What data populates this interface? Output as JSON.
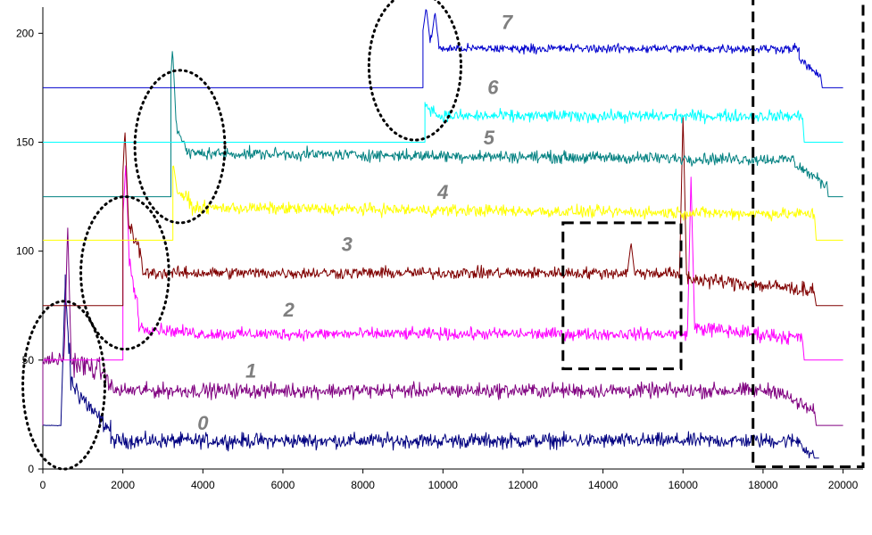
{
  "chart_data": {
    "type": "line",
    "title": "",
    "xlabel": "",
    "ylabel": "",
    "xlim": [
      0,
      20500
    ],
    "ylim": [
      0,
      212
    ],
    "x_ticks": [
      0,
      2000,
      4000,
      6000,
      8000,
      10000,
      12000,
      14000,
      16000,
      18000,
      20000
    ],
    "y_ticks": [
      0,
      50,
      100,
      150,
      200
    ],
    "grid": false,
    "legend": "none",
    "series": [
      {
        "name": "0",
        "color": "#000080",
        "baseline": 20,
        "x_start": 0,
        "x_end": 19400,
        "y_end": 5,
        "segments": [
          [
            0,
            450,
            20,
            20,
            0.3
          ],
          [
            450,
            560,
            20,
            85,
            3
          ],
          [
            560,
            700,
            85,
            40,
            10
          ],
          [
            700,
            1300,
            40,
            25,
            8
          ],
          [
            1300,
            1700,
            25,
            18,
            6
          ],
          [
            1700,
            18900,
            13,
            13,
            5
          ],
          [
            18900,
            19250,
            13,
            5,
            5
          ]
        ],
        "spikes": []
      },
      {
        "name": "1",
        "color": "#800080",
        "baseline": 20,
        "x_start": 0,
        "x_end": 20000,
        "y_end": 20,
        "segments": [
          [
            0,
            550,
            50,
            50,
            5
          ],
          [
            550,
            1500,
            50,
            45,
            8
          ],
          [
            1500,
            1800,
            45,
            35,
            5
          ],
          [
            1800,
            18500,
            36,
            36,
            5
          ],
          [
            18500,
            19300,
            34,
            26,
            5
          ]
        ],
        "spikes": [
          [
            620,
            112
          ]
        ]
      },
      {
        "name": "2",
        "color": "#ff00ff",
        "baseline": 50,
        "x_start": 0,
        "x_end": 20000,
        "y_end": 50,
        "segments": [
          [
            2000,
            2400,
            110,
            72,
            6
          ],
          [
            2400,
            4000,
            65,
            62,
            4
          ],
          [
            4000,
            16200,
            62,
            62,
            4
          ],
          [
            16200,
            19000,
            65,
            60,
            5
          ]
        ],
        "spikes": [
          [
            2070,
            140
          ],
          [
            16200,
            134
          ]
        ]
      },
      {
        "name": "3",
        "color": "#800000",
        "baseline": 75,
        "x_start": 0,
        "x_end": 20000,
        "y_end": 75,
        "segments": [
          [
            2000,
            2500,
            120,
            95,
            6
          ],
          [
            2500,
            15800,
            90,
            90,
            4
          ],
          [
            15800,
            19300,
            88,
            82,
            5
          ]
        ],
        "spikes": [
          [
            2050,
            156
          ],
          [
            14700,
            104
          ],
          [
            16000,
            163
          ]
        ]
      },
      {
        "name": "4",
        "color": "#ffff00",
        "baseline": 105,
        "x_start": 0,
        "x_end": 20000,
        "y_end": 105,
        "segments": [
          [
            3250,
            3700,
            130,
            122,
            5
          ],
          [
            3700,
            19300,
            120,
            117,
            4
          ]
        ],
        "spikes": [
          [
            3260,
            140
          ]
        ]
      },
      {
        "name": "5",
        "color": "#008080",
        "baseline": 125,
        "x_start": 0,
        "x_end": 20000,
        "y_end": 125,
        "segments": [
          [
            3200,
            3600,
            165,
            145,
            5
          ],
          [
            3600,
            18800,
            145,
            142,
            4
          ],
          [
            18800,
            19600,
            140,
            130,
            4
          ]
        ],
        "spikes": [
          [
            3240,
            193
          ]
        ]
      },
      {
        "name": "6",
        "color": "#00ffff",
        "baseline": 150,
        "x_start": 0,
        "x_end": 20000,
        "y_end": 150,
        "segments": [
          [
            9550,
            9900,
            168,
            162,
            4
          ],
          [
            9900,
            19000,
            162,
            162,
            4
          ]
        ],
        "spikes": []
      },
      {
        "name": "7",
        "color": "#0000cd",
        "baseline": 175,
        "x_start": 0,
        "x_end": 20000,
        "y_end": 175,
        "segments": [
          [
            9500,
            9900,
            200,
            195,
            6
          ],
          [
            9900,
            18900,
            193,
            193,
            3
          ],
          [
            18900,
            19450,
            188,
            180,
            3
          ]
        ],
        "spikes": [
          [
            9580,
            212
          ],
          [
            9800,
            210
          ]
        ]
      }
    ],
    "annotations": {
      "series_labels": [
        {
          "text": "0",
          "x": 4000,
          "y": 18
        },
        {
          "text": "1",
          "x": 5200,
          "y": 42
        },
        {
          "text": "2",
          "x": 6150,
          "y": 70
        },
        {
          "text": "3",
          "x": 7600,
          "y": 100
        },
        {
          "text": "4",
          "x": 10000,
          "y": 124
        },
        {
          "text": "5",
          "x": 11150,
          "y": 149
        },
        {
          "text": "6",
          "x": 11250,
          "y": 172
        },
        {
          "text": "7",
          "x": 11600,
          "y": 202
        }
      ],
      "ellipses": [
        {
          "x1": -500,
          "x2": 1550,
          "y1": 0,
          "y2": 77
        },
        {
          "x1": 950,
          "x2": 3150,
          "y1": 55,
          "y2": 125
        },
        {
          "x1": 2300,
          "x2": 4550,
          "y1": 113,
          "y2": 183
        },
        {
          "x1": 8150,
          "x2": 10450,
          "y1": 151,
          "y2": 219
        }
      ],
      "dashed_boxes": [
        {
          "x1": 13000,
          "x2": 15950,
          "y1": 46,
          "y2": 113
        },
        {
          "x1": 17750,
          "x2": 20500,
          "y1": 1,
          "y2": 217
        }
      ]
    }
  }
}
